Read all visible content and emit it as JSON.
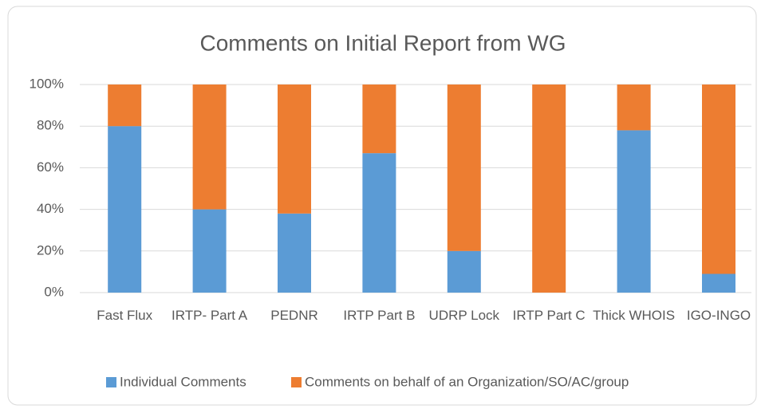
{
  "chart_data": {
    "type": "stacked_bar",
    "title": "Comments on Initial Report from WG",
    "categories": [
      "Fast Flux",
      "IRTP- Part A",
      "PEDNR",
      "IRTP Part B",
      "UDRP Lock",
      "IRTP Part C",
      "Thick WHOIS",
      "IGO-INGO"
    ],
    "series": [
      {
        "name": "Individual Comments",
        "color": "#5b9bd5",
        "values": [
          80,
          40,
          38,
          67,
          20,
          0,
          78,
          9
        ]
      },
      {
        "name": "Comments on behalf of an Organization/SO/AC/group",
        "color": "#ed7d31",
        "values": [
          20,
          60,
          62,
          33,
          80,
          100,
          22,
          91
        ]
      }
    ],
    "ylim": [
      0,
      100
    ],
    "yticks": [
      {
        "value": 0,
        "label": "0%"
      },
      {
        "value": 20,
        "label": "20%"
      },
      {
        "value": 40,
        "label": "40%"
      },
      {
        "value": 60,
        "label": "60%"
      },
      {
        "value": 80,
        "label": "80%"
      },
      {
        "value": 100,
        "label": "100%"
      }
    ],
    "grid": true,
    "legend": "bottom"
  }
}
